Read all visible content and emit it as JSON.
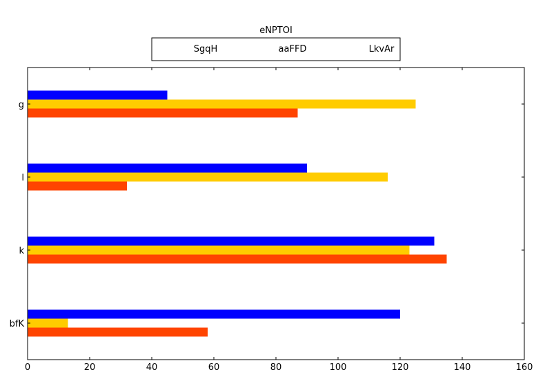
{
  "chart_data": {
    "type": "bar",
    "orientation": "horizontal",
    "title": "eNPTOI",
    "xlabel": "",
    "ylabel": "",
    "categories": [
      "g",
      "l",
      "k",
      "bfK"
    ],
    "series": [
      {
        "name": "SgqH",
        "color": "#0000ff",
        "values": [
          45,
          90,
          131,
          120
        ]
      },
      {
        "name": "aaFFD",
        "color": "#ffcc00",
        "values": [
          125,
          116,
          123,
          13
        ]
      },
      {
        "name": "LkvAr",
        "color": "#ff4400",
        "values": [
          87,
          32,
          135,
          58
        ]
      }
    ],
    "xlim": [
      0,
      160
    ],
    "xticks": [
      0,
      20,
      40,
      60,
      80,
      100,
      120,
      140,
      160
    ],
    "grid": false,
    "legend_position": "top-center"
  }
}
